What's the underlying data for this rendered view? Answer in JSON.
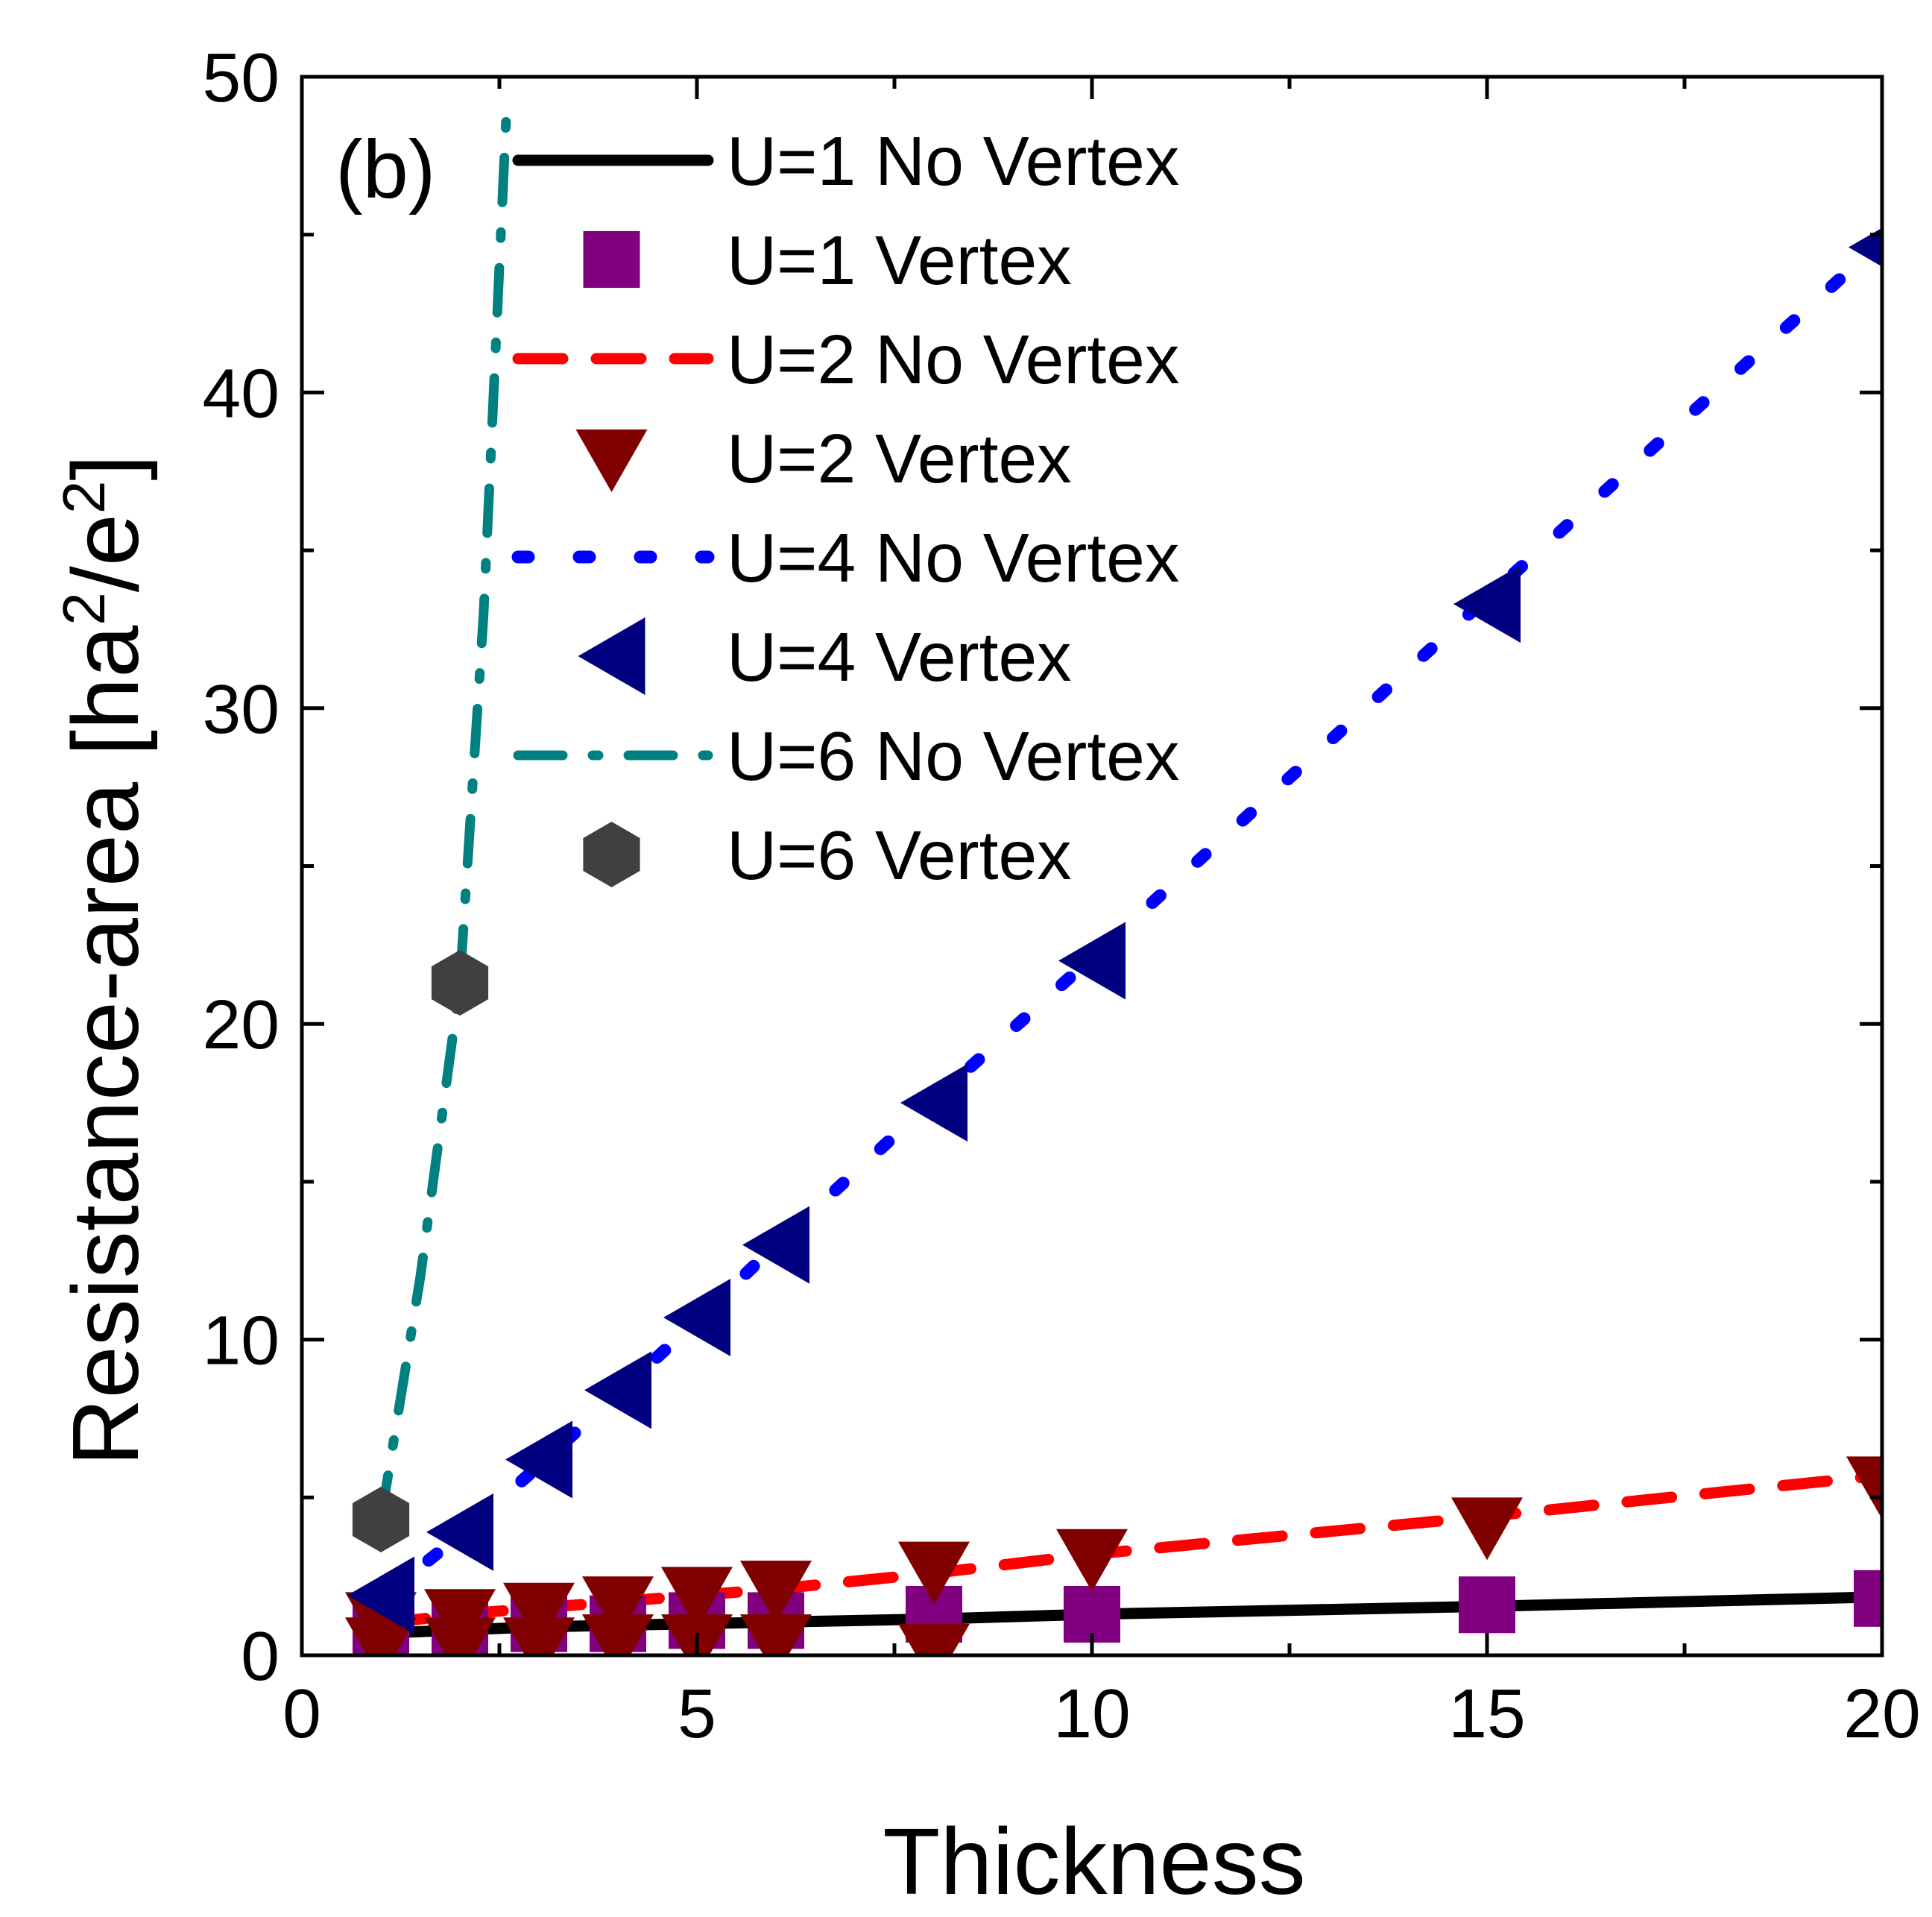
{
  "chart_data": {
    "type": "line",
    "panel_label": "(b)",
    "xlabel": "Thickness",
    "ylabel_prefix": "Resistance-area [ha",
    "ylabel_sup1": "2",
    "ylabel_mid": "/e",
    "ylabel_sup2": "2",
    "ylabel_suffix": "]",
    "xlim": [
      0,
      20
    ],
    "ylim": [
      0,
      50
    ],
    "xticks": [
      0,
      5,
      10,
      15,
      20
    ],
    "yticks": [
      0,
      10,
      20,
      30,
      40,
      50
    ],
    "xtick_labels": [
      "0",
      "5",
      "10",
      "15",
      "20"
    ],
    "ytick_labels": [
      "0",
      "10",
      "20",
      "30",
      "40",
      "50"
    ],
    "series": [
      {
        "name": "U=1 No Vertex",
        "kind": "line",
        "style": "solid",
        "color": "#000000",
        "x": [
          1,
          2,
          3,
          4,
          5,
          6,
          8,
          10,
          15,
          20
        ],
        "y": [
          0.7,
          0.8,
          0.9,
          0.95,
          1.0,
          1.05,
          1.15,
          1.3,
          1.55,
          1.85
        ]
      },
      {
        "name": "U=1 Vertex",
        "kind": "marker",
        "marker": "square",
        "color": "#800080",
        "x": [
          1,
          2,
          3,
          4,
          5,
          6,
          8,
          10,
          15,
          20
        ],
        "y": [
          0.9,
          0.9,
          1.0,
          1.0,
          1.1,
          1.1,
          1.3,
          1.3,
          1.6,
          1.8
        ]
      },
      {
        "name": "U=2 No Vertex",
        "kind": "line",
        "style": "dash",
        "color": "#ff0000",
        "x": [
          1,
          2,
          3,
          4,
          5,
          6,
          8,
          10,
          15,
          20
        ],
        "y": [
          1.0,
          1.3,
          1.5,
          1.7,
          1.9,
          2.1,
          2.6,
          3.2,
          4.4,
          5.7
        ]
      },
      {
        "name": "U=2 Vertex",
        "kind": "marker",
        "marker": "triangle-down",
        "color": "#800000",
        "x": [
          1,
          1,
          2,
          2,
          3,
          3,
          4,
          4,
          5,
          5,
          6,
          6,
          8,
          8,
          10,
          15,
          20
        ],
        "y": [
          0.3,
          1.1,
          0.3,
          1.2,
          0.3,
          1.4,
          0.4,
          1.6,
          0.4,
          1.9,
          0.4,
          2.1,
          0.1,
          2.7,
          3.1,
          4.1,
          5.4
        ]
      },
      {
        "name": "U=4 No Vertex",
        "kind": "line",
        "style": "dot",
        "color": "#0000ff",
        "x": [
          1,
          2,
          3,
          4,
          5,
          6,
          8,
          10,
          15,
          20
        ],
        "y": [
          1.8,
          3.8,
          6.0,
          8.3,
          10.6,
          13.0,
          17.6,
          22.1,
          33.5,
          44.8
        ]
      },
      {
        "name": "U=4 Vertex",
        "kind": "marker",
        "marker": "triangle-left",
        "color": "#000080",
        "x": [
          1,
          2,
          3,
          4,
          5,
          6,
          8,
          10,
          15,
          20
        ],
        "y": [
          1.9,
          3.9,
          6.2,
          8.4,
          10.7,
          13.0,
          17.5,
          22.0,
          33.3,
          44.6
        ]
      },
      {
        "name": "U=6 No Vertex",
        "kind": "line",
        "style": "dashdot",
        "color": "#008080",
        "x": [
          1,
          1.5,
          2,
          2.3,
          2.6
        ],
        "y": [
          4.3,
          12.0,
          21.3,
          33.0,
          49.5
        ]
      },
      {
        "name": "U=6 Vertex",
        "kind": "marker",
        "marker": "hexagon",
        "color": "#404040",
        "x": [
          1,
          2
        ],
        "y": [
          4.3,
          21.3
        ]
      }
    ]
  }
}
